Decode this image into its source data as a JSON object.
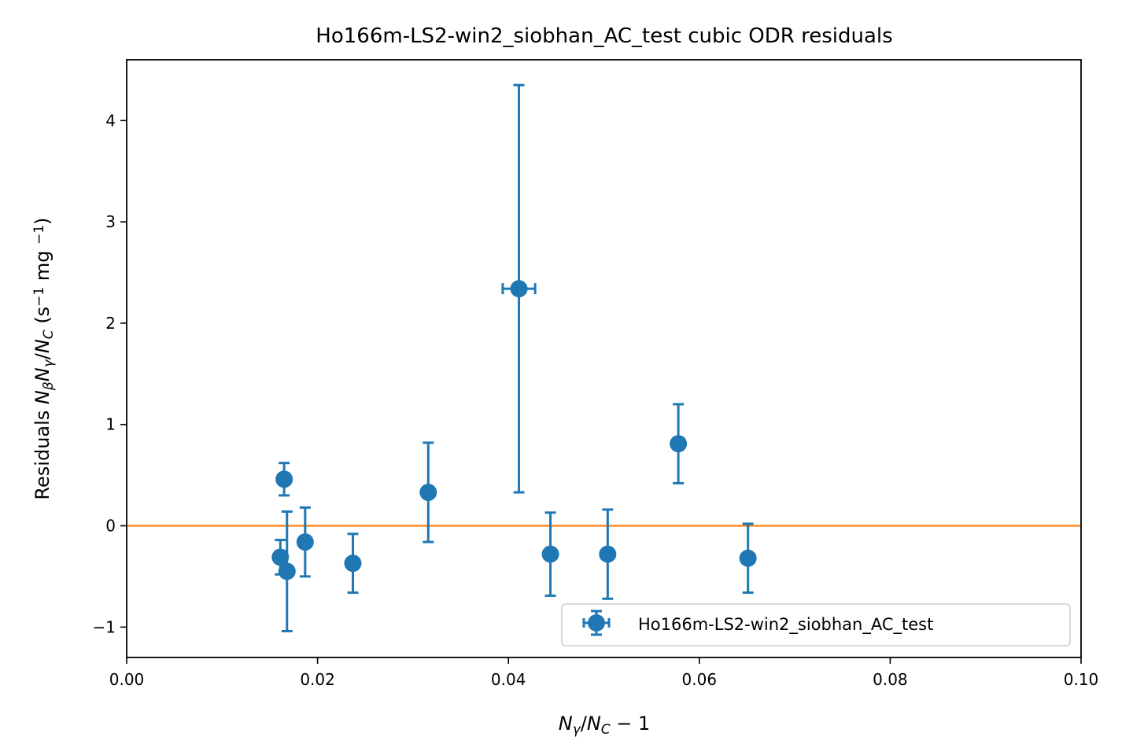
{
  "chart_data": {
    "type": "scatter",
    "title": "Ho166m-LS2-win2_siobhan_AC_test cubic ODR residuals",
    "xlabel": {
      "parts": [
        {
          "t": "N",
          "italic": true
        },
        {
          "t": "γ",
          "italic": true,
          "sub": true
        },
        {
          "t": "/",
          "italic": false
        },
        {
          "t": "N",
          "italic": true
        },
        {
          "t": "C",
          "italic": true,
          "sub": true
        },
        {
          "t": " − 1",
          "italic": false
        }
      ]
    },
    "ylabel": {
      "parts": [
        {
          "t": "Residuals ",
          "italic": false
        },
        {
          "t": "N",
          "italic": true
        },
        {
          "t": "β",
          "italic": true,
          "sub": true
        },
        {
          "t": "N",
          "italic": true
        },
        {
          "t": "γ",
          "italic": true,
          "sub": true
        },
        {
          "t": "/",
          "italic": false
        },
        {
          "t": "N",
          "italic": true
        },
        {
          "t": "C",
          "italic": true,
          "sub": true
        },
        {
          "t": " (s",
          "italic": false
        },
        {
          "t": "−1",
          "italic": false,
          "sup": true
        },
        {
          "t": " mg ",
          "italic": false
        },
        {
          "t": "−1",
          "italic": false,
          "sup": true
        },
        {
          "t": ")",
          "italic": false
        }
      ]
    },
    "xlim": [
      0.0,
      0.1
    ],
    "ylim": [
      -1.3,
      4.6
    ],
    "xticks": [
      0.0,
      0.02,
      0.04,
      0.06,
      0.08,
      0.1
    ],
    "xtick_labels": [
      "0.00",
      "0.02",
      "0.04",
      "0.06",
      "0.08",
      "0.10"
    ],
    "yticks": [
      -1,
      0,
      1,
      2,
      3,
      4
    ],
    "ytick_labels": [
      "−1",
      "0",
      "1",
      "2",
      "3",
      "4"
    ],
    "grid": false,
    "legend": {
      "position": "lower right",
      "entries": [
        "Ho166m-LS2-win2_siobhan_AC_test"
      ]
    },
    "series": [
      {
        "name": "Ho166m-LS2-win2_siobhan_AC_test",
        "color": "#1f77b4",
        "points": [
          {
            "x": 0.0161,
            "y": -0.31,
            "yerr": 0.17,
            "xerr": 0.0002
          },
          {
            "x": 0.0165,
            "y": 0.46,
            "yerr": 0.16,
            "xerr": 0.0002
          },
          {
            "x": 0.0168,
            "y": -0.45,
            "yerr": 0.59,
            "xerr": 0.0002
          },
          {
            "x": 0.0187,
            "y": -0.16,
            "yerr": 0.34,
            "xerr": 0.0002
          },
          {
            "x": 0.0237,
            "y": -0.37,
            "yerr": 0.29,
            "xerr": 0.0002
          },
          {
            "x": 0.0316,
            "y": 0.33,
            "yerr": 0.49,
            "xerr": 0.0002
          },
          {
            "x": 0.0411,
            "y": 2.34,
            "yerr": 2.01,
            "xerr": 0.0017
          },
          {
            "x": 0.0444,
            "y": -0.28,
            "yerr": 0.41,
            "xerr": 0.0002
          },
          {
            "x": 0.0504,
            "y": -0.28,
            "yerr": 0.44,
            "xerr": 0.0002
          },
          {
            "x": 0.0578,
            "y": 0.81,
            "yerr": 0.39,
            "xerr": 0.0002
          },
          {
            "x": 0.0651,
            "y": -0.32,
            "yerr": 0.34,
            "xerr": 0.0002
          }
        ]
      }
    ],
    "reference_line": {
      "y": 0,
      "color": "#ff7f0e"
    }
  }
}
